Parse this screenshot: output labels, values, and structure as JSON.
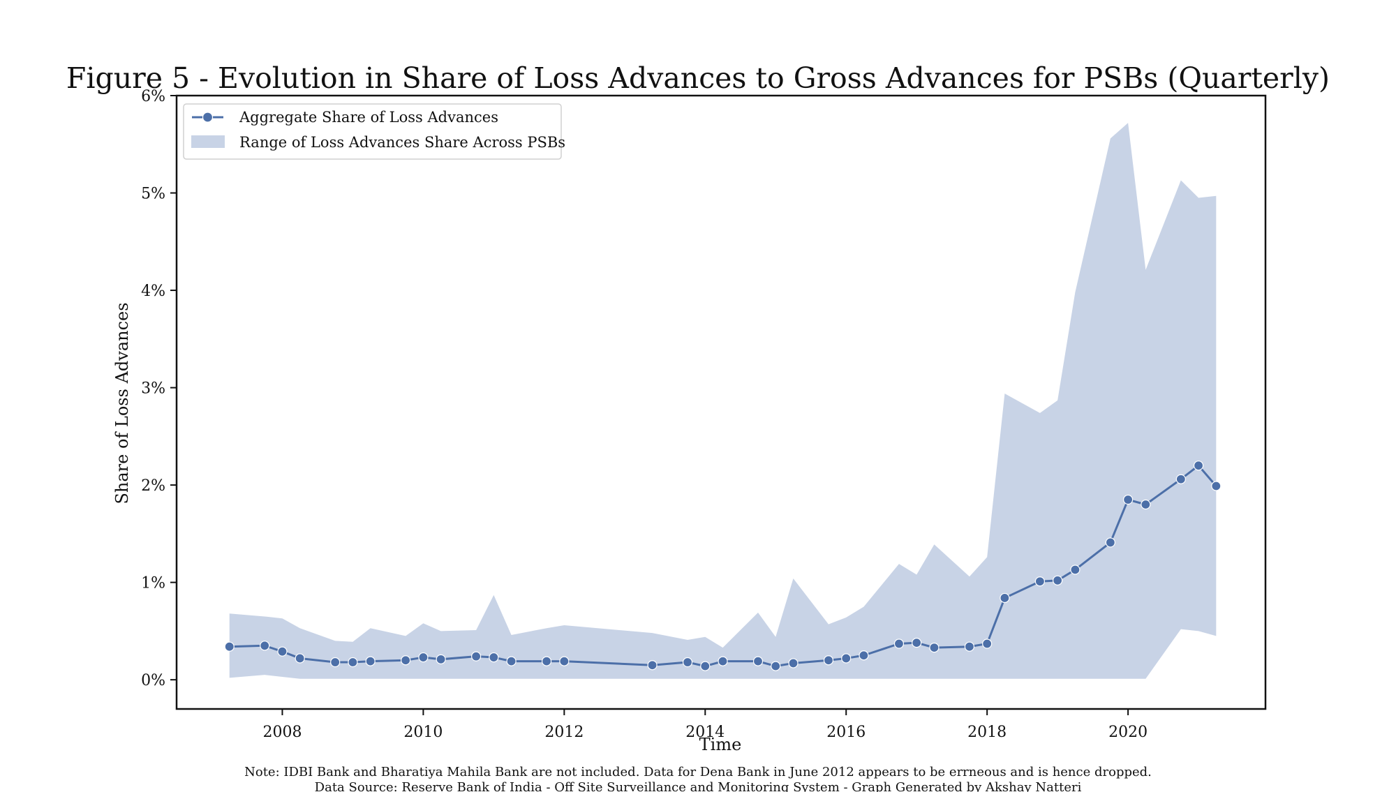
{
  "chart_data": {
    "type": "line",
    "title": "Figure 5 - Evolution in Share of Loss Advances to Gross Advances for PSBs (Quarterly)",
    "xlabel": "Time",
    "ylabel": "Share of Loss Advances",
    "xlim": [
      2006.5,
      2021.95
    ],
    "ylim": [
      -0.003,
      0.06
    ],
    "x_ticks": [
      2008,
      2010,
      2012,
      2014,
      2016,
      2018,
      2020
    ],
    "y_ticks": [
      0,
      0.01,
      0.02,
      0.03,
      0.04,
      0.05,
      0.06
    ],
    "y_tick_labels": [
      "0%",
      "1%",
      "2%",
      "3%",
      "4%",
      "5%",
      "6%"
    ],
    "grid": false,
    "legend_position": "upper-left",
    "colors": {
      "line": "#4c6fa8",
      "band": "#c8d3e6",
      "axis": "#111111"
    },
    "series": [
      {
        "name": "Aggregate Share of Loss Advances",
        "style": "line-with-markers",
        "x": [
          2007.25,
          2007.75,
          2008.0,
          2008.25,
          2008.75,
          2009.0,
          2009.25,
          2009.75,
          2010.0,
          2010.25,
          2010.75,
          2011.0,
          2011.25,
          2011.75,
          2012.0,
          2013.25,
          2013.75,
          2014.0,
          2014.25,
          2014.75,
          2015.0,
          2015.25,
          2015.75,
          2016.0,
          2016.25,
          2016.75,
          2017.0,
          2017.25,
          2017.75,
          2018.0,
          2018.25,
          2018.75,
          2019.0,
          2019.25,
          2019.75,
          2020.0,
          2020.25,
          2020.75,
          2021.0,
          2021.25
        ],
        "y": [
          0.0034,
          0.0035,
          0.0029,
          0.0022,
          0.0018,
          0.0018,
          0.0019,
          0.002,
          0.0023,
          0.0021,
          0.0024,
          0.0023,
          0.0019,
          0.0019,
          0.0019,
          0.0015,
          0.0018,
          0.0014,
          0.0019,
          0.0019,
          0.0014,
          0.0017,
          0.002,
          0.0022,
          0.0025,
          0.0037,
          0.0038,
          0.0033,
          0.0034,
          0.0037,
          0.0084,
          0.0101,
          0.0102,
          0.0113,
          0.0141,
          0.0185,
          0.018,
          0.0206,
          0.022,
          0.0199
        ]
      },
      {
        "name": "Range of Loss Advances Share Across PSBs",
        "style": "band",
        "x": [
          2007.25,
          2007.75,
          2008.0,
          2008.25,
          2008.75,
          2009.0,
          2009.25,
          2009.75,
          2010.0,
          2010.25,
          2010.75,
          2011.0,
          2011.25,
          2011.75,
          2012.0,
          2013.25,
          2013.75,
          2014.0,
          2014.25,
          2014.75,
          2015.0,
          2015.25,
          2015.75,
          2016.0,
          2016.25,
          2016.75,
          2017.0,
          2017.25,
          2017.75,
          2018.0,
          2018.25,
          2018.75,
          2019.0,
          2019.25,
          2019.75,
          2020.0,
          2020.25,
          2020.75,
          2021.0,
          2021.25
        ],
        "low": [
          0.0002,
          0.0005,
          0.0003,
          0.0001,
          0.0001,
          0.0001,
          0.0001,
          0.0001,
          0.0001,
          0.0001,
          0.0001,
          0.0001,
          0.0001,
          0.0001,
          0.0001,
          0.0001,
          0.0001,
          0.0001,
          0.0001,
          0.0001,
          0.0001,
          0.0001,
          0.0001,
          0.0001,
          0.0001,
          0.0001,
          0.0001,
          0.0001,
          0.0001,
          0.0001,
          0.0001,
          0.0001,
          0.0001,
          0.0001,
          0.0001,
          0.0001,
          0.0001,
          0.0052,
          0.005,
          0.0045
        ],
        "high": [
          0.0068,
          0.0065,
          0.0063,
          0.0053,
          0.004,
          0.0039,
          0.0053,
          0.0045,
          0.0058,
          0.005,
          0.0051,
          0.0087,
          0.0046,
          0.0053,
          0.0056,
          0.0048,
          0.0041,
          0.0044,
          0.0033,
          0.0069,
          0.0044,
          0.0104,
          0.0057,
          0.0064,
          0.0075,
          0.0119,
          0.0108,
          0.0139,
          0.0106,
          0.0126,
          0.0294,
          0.0274,
          0.0287,
          0.0398,
          0.0556,
          0.0572,
          0.0421,
          0.0513,
          0.0495,
          0.0497
        ]
      }
    ],
    "notes": [
      "Note: IDBI Bank and Bharatiya Mahila Bank are not included. Data for Dena Bank in June 2012 appears to be errneous and is hence dropped.",
      "Data Source: Reserve Bank of India - Off Site Surveillance and Monitoring System - Graph Generated by Akshay Natteri"
    ]
  }
}
